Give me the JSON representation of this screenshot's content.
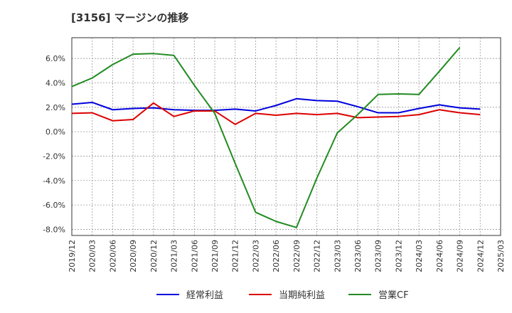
{
  "chart_data": {
    "type": "line",
    "title": "[3156]  マージンの推移",
    "xlabel": "",
    "ylabel": "",
    "ylim": [
      -8.5,
      7.7
    ],
    "y_ticks": [
      -8.0,
      -6.0,
      -4.0,
      -2.0,
      0.0,
      2.0,
      4.0,
      6.0
    ],
    "y_tick_labels": [
      "-8.0%",
      "-6.0%",
      "-4.0%",
      "-2.0%",
      "0.0%",
      "2.0%",
      "4.0%",
      "6.0%"
    ],
    "x_tick_labels": [
      "2019/12",
      "2020/03",
      "2020/06",
      "2020/09",
      "2020/12",
      "2021/03",
      "2021/06",
      "2021/09",
      "2021/12",
      "2022/03",
      "2022/06",
      "2022/09",
      "2022/12",
      "2023/03",
      "2023/06",
      "2023/09",
      "2023/12",
      "2024/03",
      "2024/06",
      "2024/09",
      "2024/12",
      "2025/03"
    ],
    "grid": true,
    "legend_position": "bottom-center",
    "series": [
      {
        "name": "経常利益",
        "color": "#0000dd",
        "values": [
          2.25,
          2.4,
          1.8,
          1.9,
          1.95,
          1.8,
          1.75,
          1.75,
          1.85,
          1.7,
          2.15,
          2.7,
          2.55,
          2.5,
          2.05,
          1.55,
          1.55,
          1.9,
          2.2,
          1.95,
          1.85
        ]
      },
      {
        "name": "当期純利益",
        "color": "#dd0000",
        "values": [
          1.5,
          1.55,
          0.9,
          1.0,
          2.35,
          1.25,
          1.7,
          1.7,
          0.6,
          1.5,
          1.35,
          1.5,
          1.4,
          1.5,
          1.15,
          1.2,
          1.25,
          1.4,
          1.8,
          1.55,
          1.4
        ]
      },
      {
        "name": "営業CF",
        "color": "#228b22",
        "values": [
          3.7,
          4.4,
          5.5,
          6.35,
          6.4,
          6.25,
          3.8,
          1.5,
          -2.6,
          -6.6,
          -7.35,
          -7.85,
          -3.8,
          -0.1,
          1.4,
          3.05,
          3.1,
          3.05,
          4.95,
          6.9,
          null
        ]
      }
    ]
  }
}
